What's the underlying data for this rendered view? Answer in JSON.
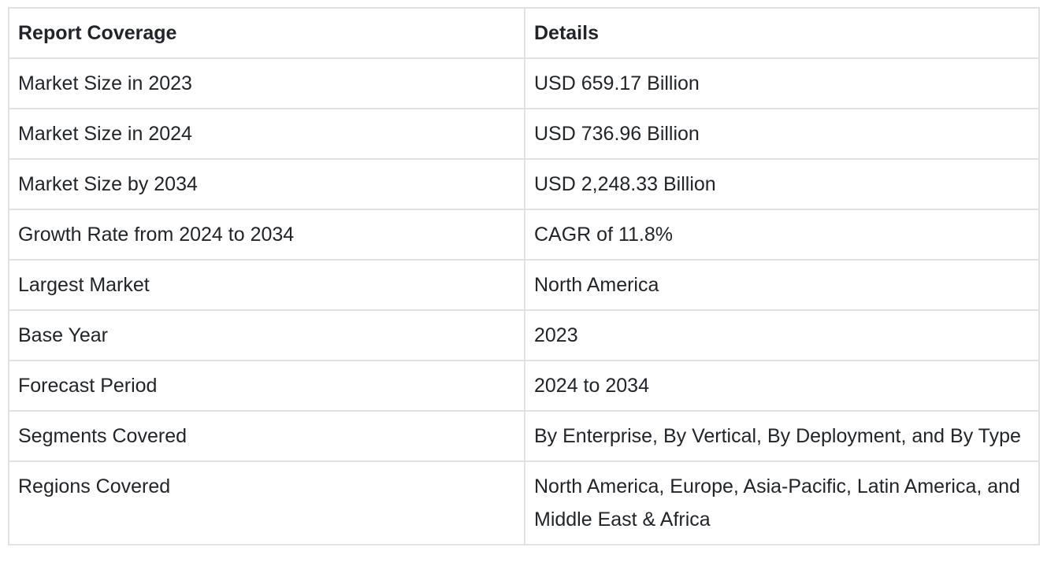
{
  "table": {
    "headers": [
      "Report Coverage",
      "Details"
    ],
    "rows": [
      [
        "Market Size in 2023",
        "USD 659.17 Billion"
      ],
      [
        "Market Size in 2024",
        "USD 736.96 Billion"
      ],
      [
        "Market Size by 2034",
        "USD 2,248.33 Billion"
      ],
      [
        "Growth Rate from 2024 to 2034",
        "CAGR of 11.8%"
      ],
      [
        "Largest Market",
        "North America"
      ],
      [
        "Base Year",
        "2023"
      ],
      [
        "Forecast Period",
        "2024 to 2034"
      ],
      [
        "Segments Covered",
        "By Enterprise, By Vertical, By Deployment, and By Type"
      ],
      [
        "Regions Covered",
        "North America, Europe, Asia-Pacific, Latin America, and Middle East & Africa"
      ]
    ]
  }
}
